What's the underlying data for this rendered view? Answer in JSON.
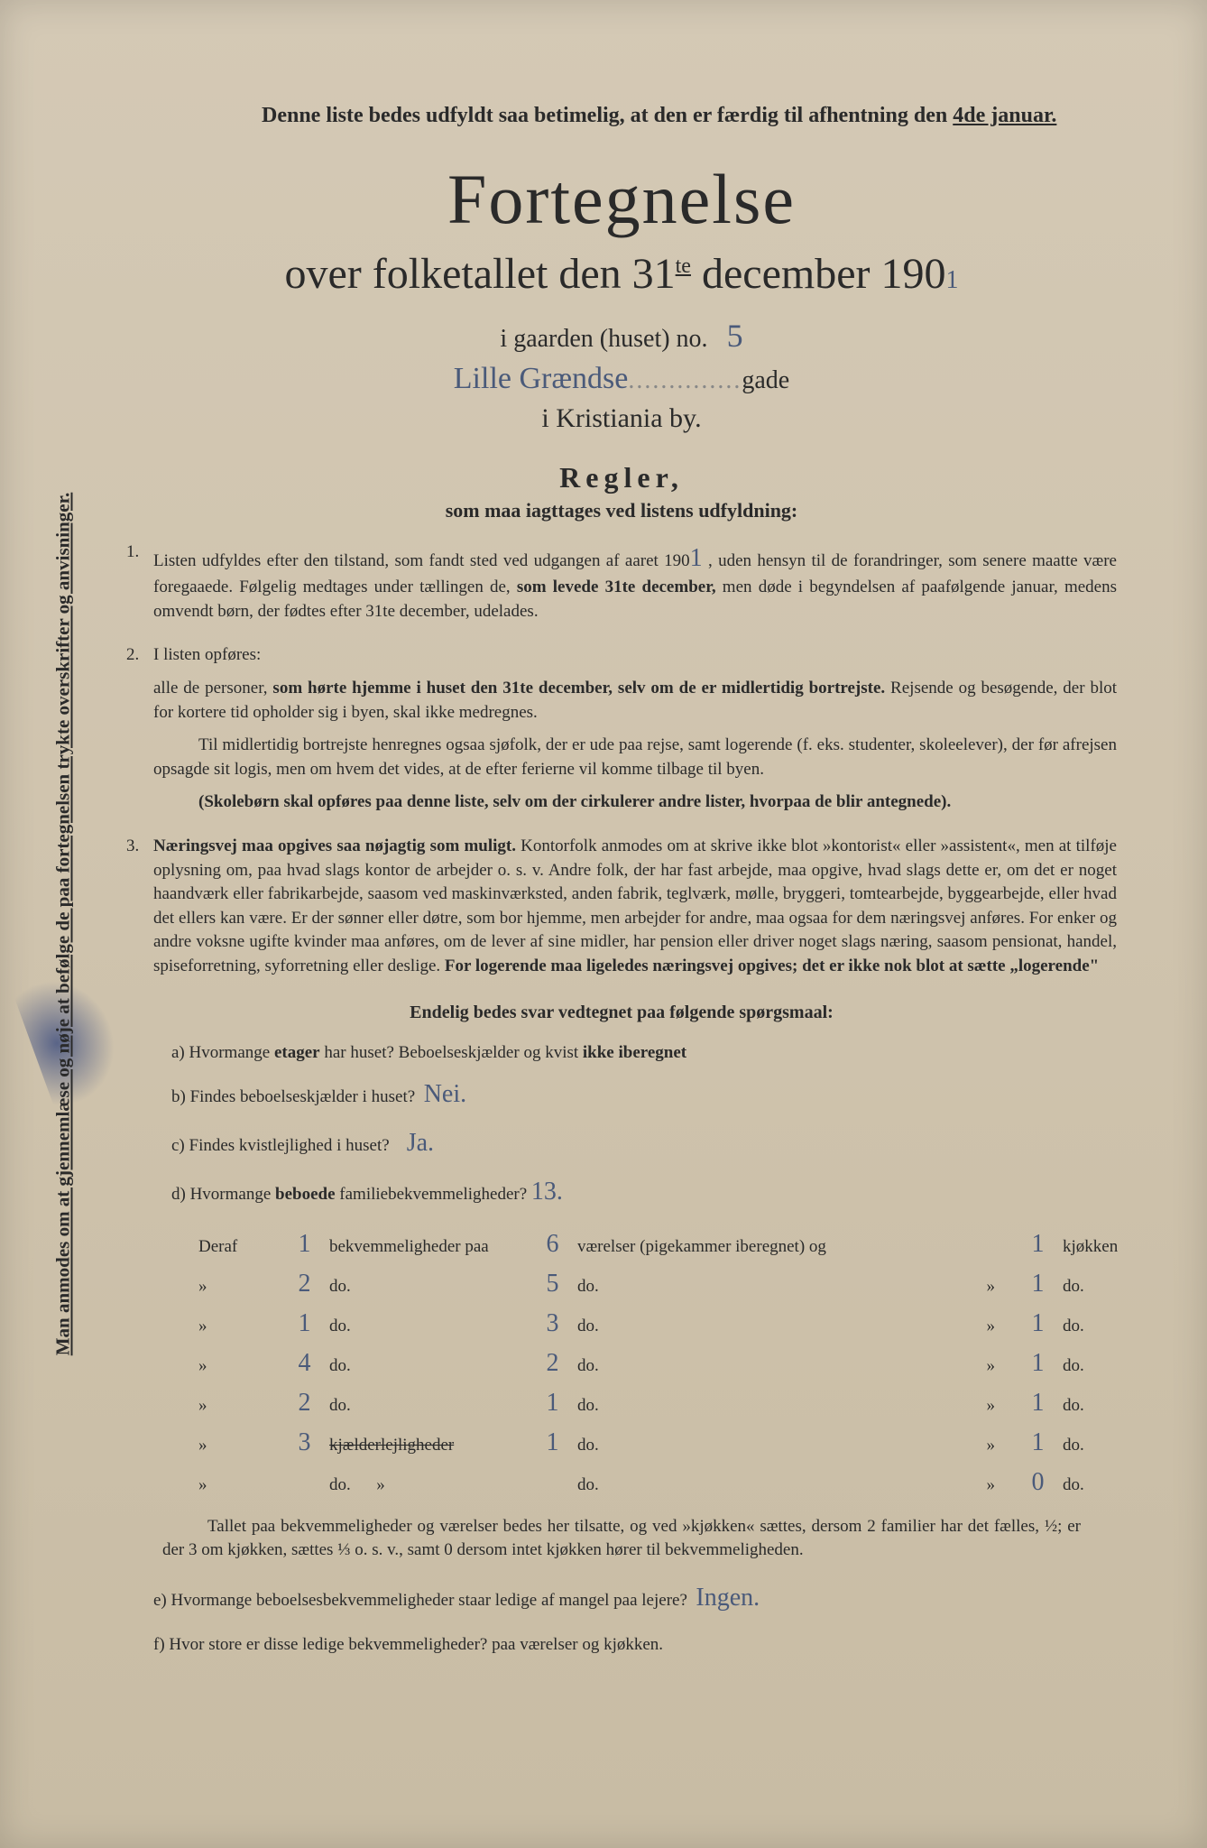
{
  "sidebar": "Man anmodes om at gjennemlæse og nøje at befølge de paa fortegnelsen trykte overskrifter og anvisninger.",
  "top_notice_prefix": "Denne liste bedes udfyldt saa betimelig, at den er færdig til afhentning den ",
  "top_notice_date": "4de januar.",
  "title": "Fortegnelse",
  "subtitle_1": "over folketallet den 31",
  "subtitle_sup": "te",
  "subtitle_2": " december 190",
  "subtitle_hw_year": "1",
  "line_gard_label": "i gaarden (huset) no.",
  "line_gard_hw": "5",
  "street_hw": "Lille Grændse",
  "street_suffix": "gade",
  "city_line": "i Kristiania by.",
  "regler": "Regler,",
  "regler_sub": "som maa iagttages ved listens udfyldning:",
  "rule1_a": "Listen udfyldes efter den tilstand, som fandt sted ved udgangen af aaret 190",
  "rule1_hw": "1",
  "rule1_b": " , uden hensyn til de forandringer, som senere maatte være foregaaede. Følgelig medtages under tællingen de, ",
  "rule1_bold1": "som levede 31te december,",
  "rule1_c": " men døde i begyndelsen af paafølgende januar, medens omvendt børn, der fødtes efter 31te december, udelades.",
  "rule2_intro": "I listen opføres:",
  "rule2_p1a": "alle de personer, ",
  "rule2_p1bold": "som hørte hjemme i huset den 31te december, selv om de er midlertidig bortrejste.",
  "rule2_p1b": " Rejsende og besøgende, der blot for kortere tid opholder sig i byen, skal ikke medregnes.",
  "rule2_p2": "Til midlertidig bortrejste henregnes ogsaa sjøfolk, der er ude paa rejse, samt logerende (f. eks. studenter, skoleelever), der før afrejsen opsagde sit logis, men om hvem det vides, at de efter ferierne vil komme tilbage til byen.",
  "rule2_p3": "(Skolebørn skal opføres paa denne liste, selv om der cirkulerer andre lister, hvorpaa de blir antegnede).",
  "rule3_bold": "Næringsvej maa opgives saa nøjagtig som muligt.",
  "rule3_body": " Kontorfolk anmodes om at skrive ikke blot »kontorist« eller »assistent«, men at tilføje oplysning om, paa hvad slags kontor de arbejder o. s. v. Andre folk, der har fast arbejde, maa opgive, hvad slags dette er, om det er noget haandværk eller fabrikarbejde, saasom ved maskinværksted, anden fabrik, teglværk, mølle, bryggeri, tomtearbejde, byggearbejde, eller hvad det ellers kan være. Er der sønner eller døtre, som bor hjemme, men arbejder for andre, maa ogsaa for dem næringsvej anføres. For enker og andre voksne ugifte kvinder maa anføres, om de lever af sine midler, har pension eller driver noget slags næring, saasom pensionat, handel, spiseforretning, syforretning eller deslige. ",
  "rule3_bold2": "For logerende maa ligeledes næringsvej opgives; det er ikke nok blot at sætte „logerende\"",
  "final_head": "Endelig bedes svar vedtegnet paa følgende spørgsmaal:",
  "qa": "a) Hvormange ",
  "qa_bold": "etager",
  "qa2": " har huset?  Beboelseskjælder og kvist ",
  "qa_bold2": "ikke iberegnet",
  "qb": "b) Findes beboelseskjælder i huset?",
  "qb_hw": "Nei.",
  "qc": "c) Findes kvistlejlighed i huset?",
  "qc_hw": "Ja.",
  "qd": "d) Hvormange ",
  "qd_bold": "beboede",
  "qd2": " familiebekvemmeligheder?",
  "qd_hw": "13.",
  "table_head_deraf": "Deraf",
  "table_head_1": "1",
  "table_head_mid": "bekvemmeligheder paa",
  "table_head_6": "6",
  "table_head_v": "værelser (pigekammer iberegnet) og",
  "table_head_k": "1",
  "table_head_kj": "kjøkken",
  "rows": [
    {
      "a": "2",
      "b": "5",
      "c": "1"
    },
    {
      "a": "1",
      "b": "3",
      "c": "1"
    },
    {
      "a": "4",
      "b": "2",
      "c": "1"
    },
    {
      "a": "2",
      "b": "1",
      "c": "1"
    },
    {
      "a": "3",
      "b": "1",
      "c": "1",
      "label": "kjælderlejligheder"
    },
    {
      "a": "",
      "b": "",
      "c": "0"
    }
  ],
  "do": "do.",
  "note_tallet": "Tallet paa bekvemmeligheder og værelser bedes her tilsatte, og ved »kjøkken« sættes, dersom 2 familier har det fælles, ½; er der 3 om kjøkken, sættes ⅓ o. s. v., samt 0 dersom intet kjøkken hører til bekvemmeligheden.",
  "qe": "e) Hvormange beboelsesbekvemmeligheder staar ledige af mangel paa lejere?",
  "qe_hw": "Ingen.",
  "qf": "f) Hvor store er disse ledige bekvemmeligheder?          paa          værelser og          kjøkken."
}
